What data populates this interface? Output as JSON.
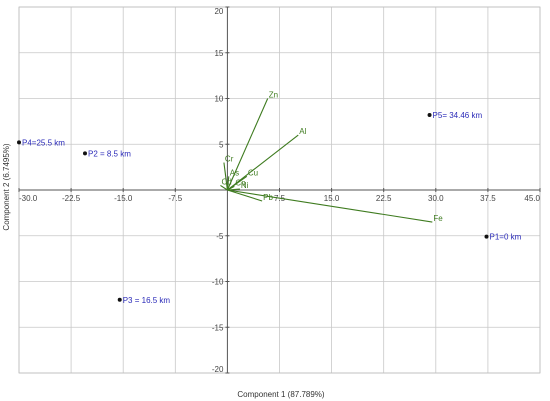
{
  "chart_data": {
    "type": "scatter",
    "subtype": "pca-biplot",
    "xlabel": "Component 1 (87.789%)",
    "ylabel": "Component 2 (6.7495%)",
    "xlim": [
      -30,
      45
    ],
    "ylim": [
      -20,
      20
    ],
    "x_ticks": [
      "-30.0",
      "-22.5",
      "-15.0",
      "-7.5",
      "7.5",
      "15.0",
      "22.5",
      "30.0",
      "37.5",
      "45.0"
    ],
    "x_tick_values": [
      -30,
      -22.5,
      -15,
      -7.5,
      7.5,
      15,
      22.5,
      30,
      37.5,
      45
    ],
    "y_ticks": [
      "20",
      "15",
      "10",
      "5",
      "-5",
      "-10",
      "-15",
      "-20"
    ],
    "y_tick_values": [
      20,
      15,
      10,
      5,
      -5,
      -10,
      -15,
      -20
    ],
    "grid": true,
    "colors": {
      "points": "#111111",
      "point_labels": "#2a2ab8",
      "vectors": "#3e7b1f",
      "grid": "#c8c8c8",
      "axes": "#555555"
    },
    "points": [
      {
        "label": "P1=0 km",
        "x": 37.3,
        "y": -5.1
      },
      {
        "label": "P2 = 8.5 km",
        "x": -20.5,
        "y": 4.0
      },
      {
        "label": "P3 = 16.5 km",
        "x": -15.5,
        "y": -12.0
      },
      {
        "label": "P4=25.5 km",
        "x": -30.0,
        "y": 5.2
      },
      {
        "label": "P5= 34.46 km",
        "x": 29.1,
        "y": 8.2
      }
    ],
    "vectors": [
      {
        "label": "Zn",
        "x": 5.8,
        "y": 10.0
      },
      {
        "label": "Al",
        "x": 10.2,
        "y": 6.0
      },
      {
        "label": "Cu",
        "x": 2.8,
        "y": 1.5
      },
      {
        "label": "As",
        "x": 0.2,
        "y": 1.5
      },
      {
        "label": "Cr",
        "x": -0.5,
        "y": 3.0
      },
      {
        "label": "Cd",
        "x": -1.0,
        "y": 0.5
      },
      {
        "label": "Ni",
        "x": 1.8,
        "y": 0.1
      },
      {
        "label": "Co",
        "x": 1.0,
        "y": 0.4
      },
      {
        "label": "Pb",
        "x": 5.0,
        "y": -1.2
      },
      {
        "label": "Fe",
        "x": 29.5,
        "y": -3.5
      }
    ]
  }
}
